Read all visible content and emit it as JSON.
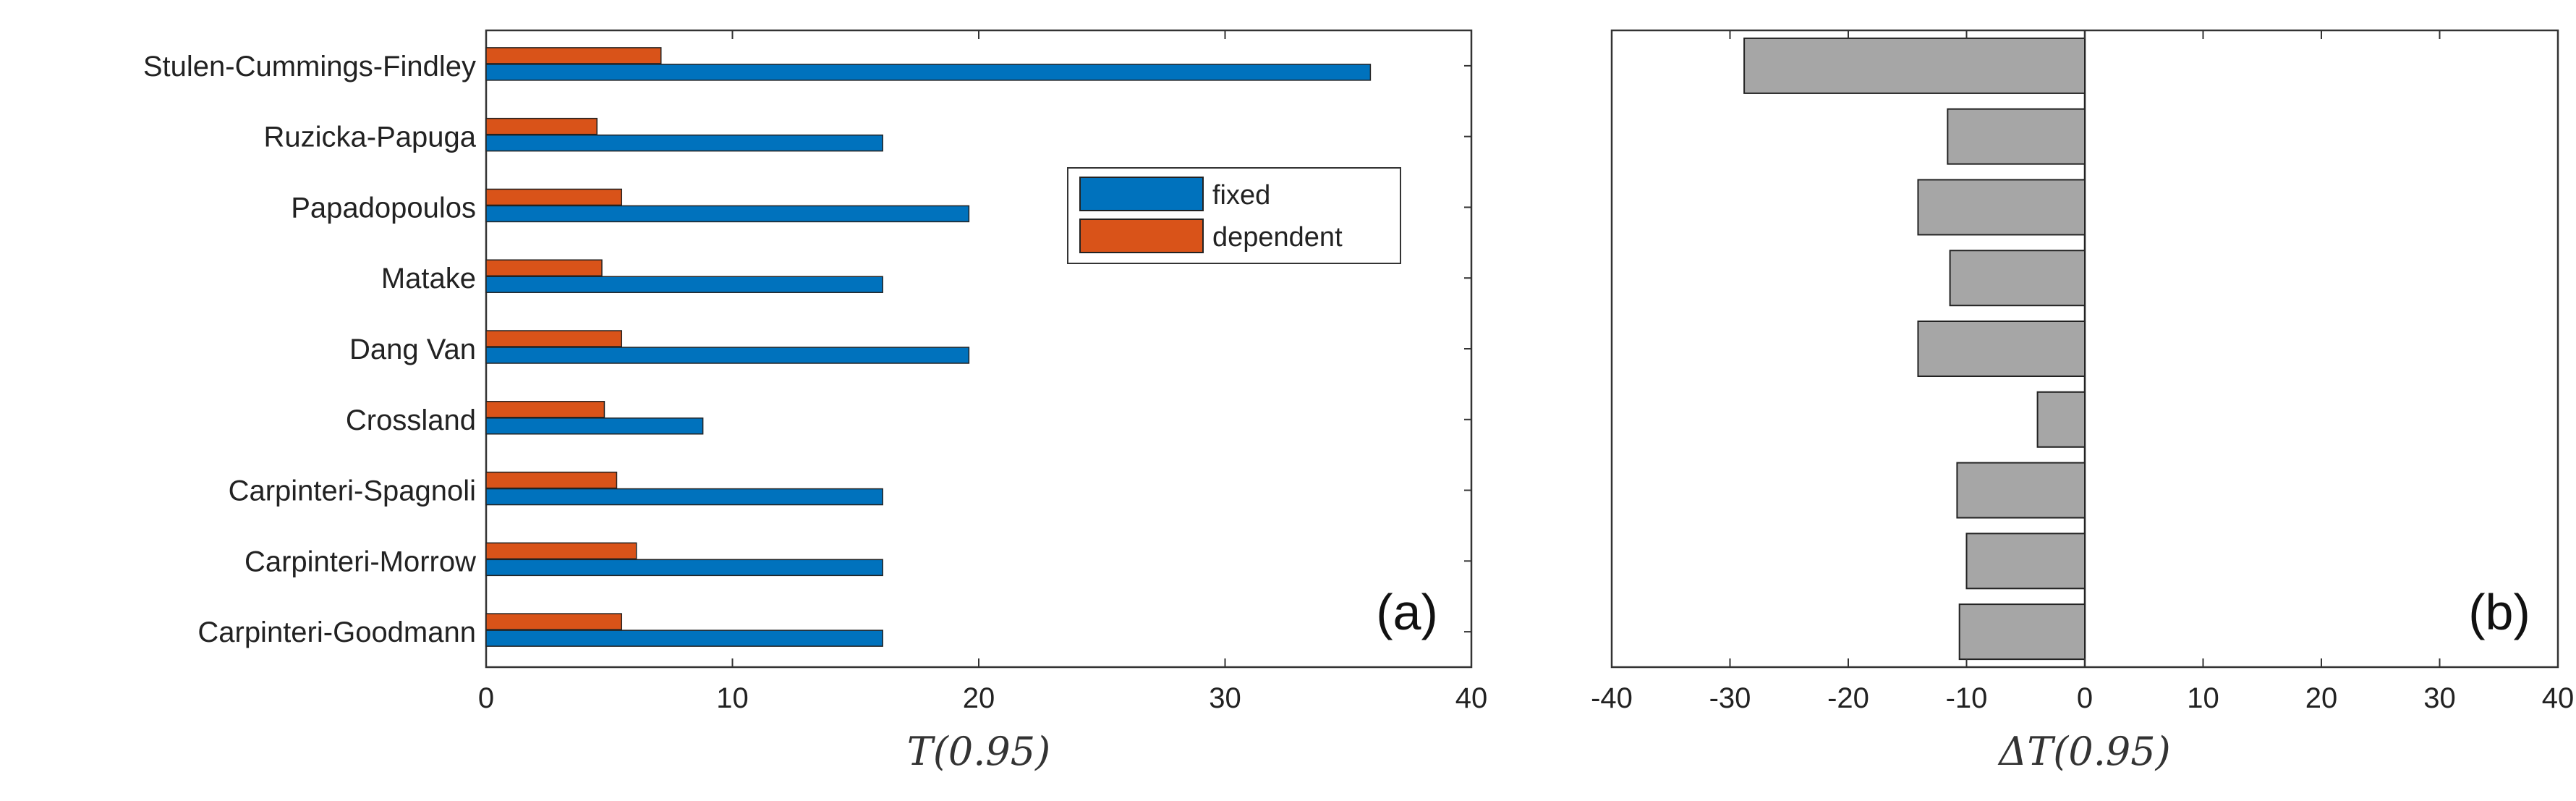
{
  "colors": {
    "fixed": "#0072BD",
    "dependent": "#D95319",
    "delta": "#A6A6A6",
    "edge": "#222222"
  },
  "chart_data": [
    {
      "panel": "(a)",
      "type": "bar",
      "orientation": "horizontal",
      "categories": [
        "Stulen-Cummings-Findley",
        "Ruzicka-Papuga",
        "Papadopoulos",
        "Matake",
        "Dang Van",
        "Crossland",
        "Carpinteri-Spagnoli",
        "Carpinteri-Morrow",
        "Carpinteri-Goodmann"
      ],
      "series": [
        {
          "name": "fixed",
          "values": [
            35.9,
            16.1,
            19.6,
            16.1,
            19.6,
            8.8,
            16.1,
            16.1,
            16.1
          ]
        },
        {
          "name": "dependent",
          "values": [
            7.1,
            4.5,
            5.5,
            4.7,
            5.5,
            4.8,
            5.3,
            6.1,
            5.5
          ]
        }
      ],
      "xlabel": "T(0.95)",
      "xlim": [
        0,
        40
      ],
      "xticks": [
        "0",
        "10",
        "20",
        "30",
        "40"
      ],
      "legend": [
        "fixed",
        "dependent"
      ],
      "legend_position": "upper-right"
    },
    {
      "panel": "(b)",
      "type": "bar",
      "orientation": "horizontal",
      "categories": [
        "Stulen-Cummings-Findley",
        "Ruzicka-Papuga",
        "Papadopoulos",
        "Matake",
        "Dang Van",
        "Crossland",
        "Carpinteri-Spagnoli",
        "Carpinteri-Morrow",
        "Carpinteri-Goodmann"
      ],
      "series": [
        {
          "name": "ΔT(0.95)",
          "values": [
            -28.8,
            -11.6,
            -14.1,
            -11.4,
            -14.1,
            -4.0,
            -10.8,
            -10.0,
            -10.6
          ]
        }
      ],
      "xlabel": "ΔT(0.95)",
      "xlim": [
        -40,
        40
      ],
      "xticks": [
        "-40",
        "-30",
        "-20",
        "-10",
        "0",
        "10",
        "20",
        "30",
        "40"
      ]
    }
  ]
}
